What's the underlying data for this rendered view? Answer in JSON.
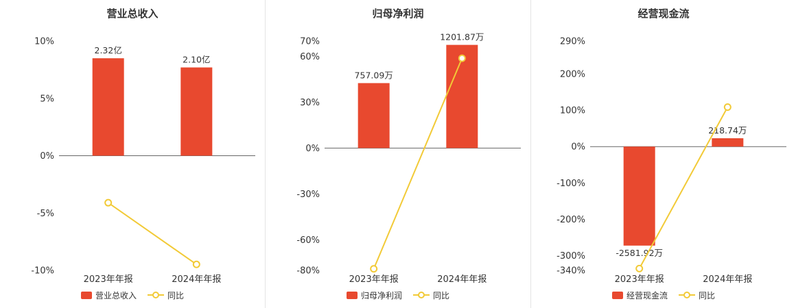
{
  "colors": {
    "bar": "#e8492f",
    "line": "#f2ca37",
    "axis": "#666666",
    "text": "#333333",
    "divider": "#e4e4e4",
    "background": "#ffffff"
  },
  "chart_data": [
    {
      "type": "bar",
      "title": "营业总收入",
      "categories": [
        "2023年年报",
        "2024年年报"
      ],
      "bar_series": {
        "name": "营业总收入",
        "values": [
          2.32,
          2.1
        ],
        "unit": "亿",
        "value_labels": [
          "2.32亿",
          "2.10亿"
        ],
        "display_pct": [
          8.5,
          7.7
        ]
      },
      "line_series": {
        "name": "同比",
        "values_pct": [
          -4.1,
          -9.48
        ]
      },
      "yticks": {
        "values": [
          10,
          5,
          0,
          -5,
          -10
        ],
        "labels": [
          "10%",
          "5%",
          "0%",
          "-5%",
          "-10%"
        ]
      },
      "ylim": [
        -10,
        10
      ],
      "grid": false,
      "legend_position": "bottom"
    },
    {
      "type": "bar",
      "title": "归母净利润",
      "categories": [
        "2023年年报",
        "2024年年报"
      ],
      "bar_series": {
        "name": "归母净利润",
        "values": [
          757.09,
          1201.87
        ],
        "unit": "万",
        "value_labels": [
          "757.09万",
          "1201.87万"
        ],
        "display_pct": [
          42.5,
          67.5
        ]
      },
      "line_series": {
        "name": "同比",
        "values_pct": [
          -79,
          58.75
        ]
      },
      "yticks": {
        "values": [
          70,
          60,
          30,
          0,
          -30,
          -60,
          -80
        ],
        "labels": [
          "70%",
          "60%",
          "30%",
          "0%",
          "-30%",
          "-60%",
          "-80%"
        ]
      },
      "ylim": [
        -80,
        70
      ],
      "grid": false,
      "legend_position": "bottom"
    },
    {
      "type": "bar",
      "title": "经营现金流",
      "categories": [
        "2023年年报",
        "2024年年报"
      ],
      "bar_series": {
        "name": "经营现金流",
        "values": [
          -2581.92,
          218.74
        ],
        "unit": "万",
        "value_labels": [
          "-2581.92万",
          "218.74万"
        ],
        "display_pct": [
          -272,
          23
        ]
      },
      "line_series": {
        "name": "同比",
        "values_pct": [
          -335,
          108.47
        ]
      },
      "yticks": {
        "values": [
          290,
          200,
          100,
          0,
          -100,
          -200,
          -300,
          -340
        ],
        "labels": [
          "290%",
          "200%",
          "100%",
          "0%",
          "-100%",
          "-200%",
          "-300%",
          "-340%"
        ]
      },
      "ylim": [
        -340,
        290
      ],
      "grid": false,
      "legend_position": "bottom"
    }
  ]
}
